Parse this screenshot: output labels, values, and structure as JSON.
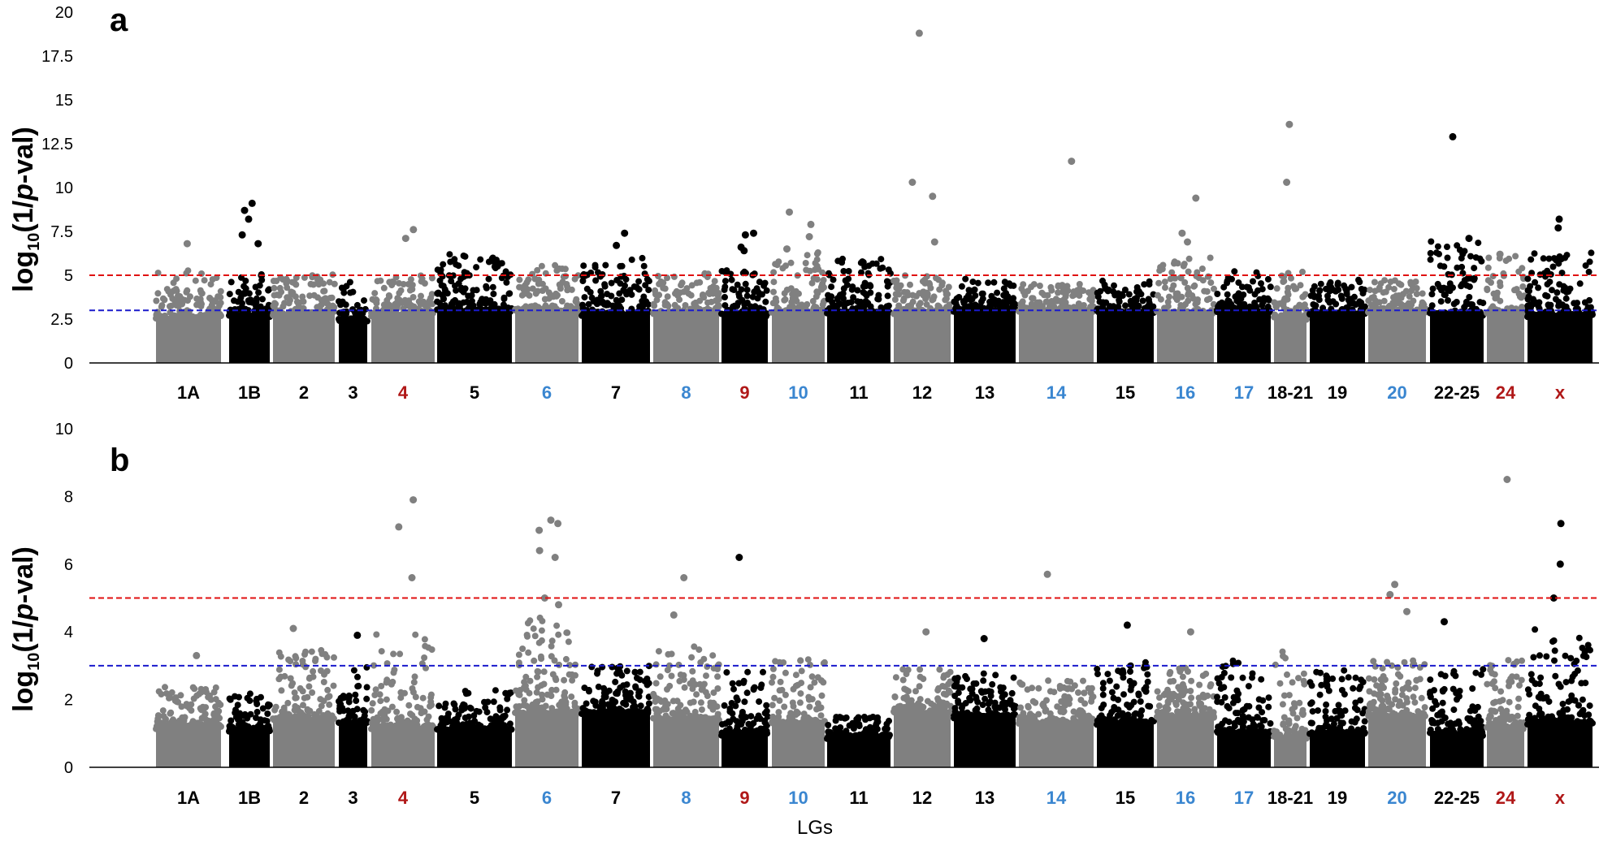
{
  "chart_data": [
    {
      "type": "scatter",
      "panel": "a",
      "ylabel_main": "log",
      "ylabel_sub": "10",
      "ylabel_rest_open": "(1/",
      "ylabel_italic": "p",
      "ylabel_rest_close": "-val)",
      "ylim": [
        0,
        20
      ],
      "yticks": [
        "0",
        "2.5",
        "5",
        "7.5",
        "10",
        "12.5",
        "15",
        "17.5",
        "20"
      ],
      "yticks_values": [
        0,
        2.5,
        5,
        7.5,
        10,
        12.5,
        15,
        17.5,
        20
      ],
      "threshold_lines": [
        {
          "value": 5,
          "color": "#e01010"
        },
        {
          "value": 3,
          "color": "#1a1acc"
        }
      ],
      "lg_base": [
        2.6,
        2.7,
        2.8,
        2.4,
        2.8,
        3.0,
        2.9,
        2.8,
        2.8,
        2.8,
        2.9,
        2.9,
        2.9,
        3.0,
        2.9,
        2.9,
        2.8,
        2.9,
        2.6,
        2.8,
        2.9,
        2.8,
        2.8,
        2.7
      ],
      "lg_ceiling": [
        5.3,
        5.1,
        5.1,
        4.9,
        5.0,
        6.2,
        5.6,
        6.0,
        5.2,
        5.3,
        6.5,
        6.0,
        5.0,
        4.8,
        4.5,
        4.7,
        6.0,
        5.3,
        5.3,
        4.8,
        4.8,
        7.0,
        6.1,
        6.3
      ],
      "outliers": [
        {
          "lg": "1A",
          "y": 6.8
        },
        {
          "lg": "1B",
          "y": 9.1
        },
        {
          "lg": "1B",
          "y": 8.7
        },
        {
          "lg": "1B",
          "y": 8.2
        },
        {
          "lg": "1B",
          "y": 7.3
        },
        {
          "lg": "1B",
          "y": 6.8
        },
        {
          "lg": "4",
          "y": 7.6
        },
        {
          "lg": "4",
          "y": 7.1
        },
        {
          "lg": "7",
          "y": 7.4
        },
        {
          "lg": "7",
          "y": 6.7
        },
        {
          "lg": "9",
          "y": 7.4
        },
        {
          "lg": "9",
          "y": 7.3
        },
        {
          "lg": "9",
          "y": 6.6
        },
        {
          "lg": "9",
          "y": 6.4
        },
        {
          "lg": "10",
          "y": 8.6
        },
        {
          "lg": "10",
          "y": 7.9
        },
        {
          "lg": "10",
          "y": 7.2
        },
        {
          "lg": "10",
          "y": 6.5
        },
        {
          "lg": "12",
          "y": 18.8
        },
        {
          "lg": "12",
          "y": 10.3
        },
        {
          "lg": "12",
          "y": 9.5
        },
        {
          "lg": "12",
          "y": 6.9
        },
        {
          "lg": "14",
          "y": 11.5
        },
        {
          "lg": "16",
          "y": 9.4
        },
        {
          "lg": "16",
          "y": 7.4
        },
        {
          "lg": "16",
          "y": 6.9
        },
        {
          "lg": "18-21",
          "y": 13.6
        },
        {
          "lg": "18-21",
          "y": 10.3
        },
        {
          "lg": "22-25",
          "y": 12.9
        },
        {
          "lg": "22-25",
          "y": 7.1
        },
        {
          "lg": "24",
          "y": 6.2
        },
        {
          "lg": "x",
          "y": 8.2
        },
        {
          "lg": "x",
          "y": 7.7
        }
      ]
    },
    {
      "type": "scatter",
      "panel": "b",
      "ylabel_main": "log",
      "ylabel_sub": "10",
      "ylabel_rest_open": "(1/",
      "ylabel_italic": "p",
      "ylabel_rest_close": "-val)",
      "ylim": [
        0,
        10
      ],
      "yticks": [
        "0",
        "2",
        "4",
        "6",
        "8",
        "10"
      ],
      "yticks_values": [
        0,
        2,
        4,
        6,
        8,
        10
      ],
      "threshold_lines": [
        {
          "value": 5,
          "color": "#e01010"
        },
        {
          "value": 3,
          "color": "#1a1acc"
        }
      ],
      "lg_base": [
        1.2,
        1.1,
        1.4,
        1.3,
        1.2,
        1.1,
        1.6,
        1.6,
        1.4,
        1.0,
        1.3,
        0.9,
        1.6,
        1.5,
        1.3,
        1.3,
        1.5,
        1.0,
        0.9,
        1.0,
        1.5,
        1.0,
        1.2,
        1.3
      ],
      "lg_ceiling": [
        2.4,
        2.2,
        3.5,
        3.0,
        4.0,
        2.3,
        4.5,
        3.0,
        3.6,
        2.9,
        3.2,
        1.5,
        3.0,
        2.8,
        2.6,
        3.1,
        3.0,
        3.2,
        3.6,
        2.9,
        3.3,
        2.9,
        3.3,
        4.1
      ],
      "outliers": [
        {
          "lg": "1A",
          "y": 3.3
        },
        {
          "lg": "2",
          "y": 4.1
        },
        {
          "lg": "3",
          "y": 3.9
        },
        {
          "lg": "4",
          "y": 7.9
        },
        {
          "lg": "4",
          "y": 7.1
        },
        {
          "lg": "4",
          "y": 5.6
        },
        {
          "lg": "6",
          "y": 7.3
        },
        {
          "lg": "6",
          "y": 7.2
        },
        {
          "lg": "6",
          "y": 7.0
        },
        {
          "lg": "6",
          "y": 6.4
        },
        {
          "lg": "6",
          "y": 6.2
        },
        {
          "lg": "6",
          "y": 5.0
        },
        {
          "lg": "6",
          "y": 4.8
        },
        {
          "lg": "8",
          "y": 5.6
        },
        {
          "lg": "8",
          "y": 4.5
        },
        {
          "lg": "9",
          "y": 6.2
        },
        {
          "lg": "12",
          "y": 4.0
        },
        {
          "lg": "13",
          "y": 3.8
        },
        {
          "lg": "14",
          "y": 5.7
        },
        {
          "lg": "15",
          "y": 4.2
        },
        {
          "lg": "16",
          "y": 4.0
        },
        {
          "lg": "20",
          "y": 5.4
        },
        {
          "lg": "20",
          "y": 5.1
        },
        {
          "lg": "20",
          "y": 4.6
        },
        {
          "lg": "22-25",
          "y": 4.3
        },
        {
          "lg": "24",
          "y": 8.5
        },
        {
          "lg": "x",
          "y": 7.2
        },
        {
          "lg": "x",
          "y": 6.0
        },
        {
          "lg": "x",
          "y": 5.0
        }
      ]
    }
  ],
  "lg_labels": [
    {
      "label": "1A",
      "color": "#000000"
    },
    {
      "label": "1B",
      "color": "#000000"
    },
    {
      "label": "2",
      "color": "#000000"
    },
    {
      "label": "3",
      "color": "#000000"
    },
    {
      "label": "4",
      "color": "#b01818"
    },
    {
      "label": "5",
      "color": "#000000"
    },
    {
      "label": "6",
      "color": "#3a86d0"
    },
    {
      "label": "7",
      "color": "#000000"
    },
    {
      "label": "8",
      "color": "#3a86d0"
    },
    {
      "label": "9",
      "color": "#b01818"
    },
    {
      "label": "10",
      "color": "#3a86d0"
    },
    {
      "label": "11",
      "color": "#000000"
    },
    {
      "label": "12",
      "color": "#000000"
    },
    {
      "label": "13",
      "color": "#000000"
    },
    {
      "label": "14",
      "color": "#3a86d0"
    },
    {
      "label": "15",
      "color": "#000000"
    },
    {
      "label": "16",
      "color": "#3a86d0"
    },
    {
      "label": "17",
      "color": "#3a86d0"
    },
    {
      "label": "18-21",
      "color": "#000000"
    },
    {
      "label": "19",
      "color": "#000000"
    },
    {
      "label": "20",
      "color": "#3a86d0"
    },
    {
      "label": "22-25",
      "color": "#000000"
    },
    {
      "label": "24",
      "color": "#b01818"
    },
    {
      "label": "x",
      "color": "#b01818"
    }
  ],
  "series_colors": [
    "#808080",
    "#000000"
  ],
  "xlabel": "LGs",
  "panel_a_letter": "a",
  "panel_b_letter": "b"
}
